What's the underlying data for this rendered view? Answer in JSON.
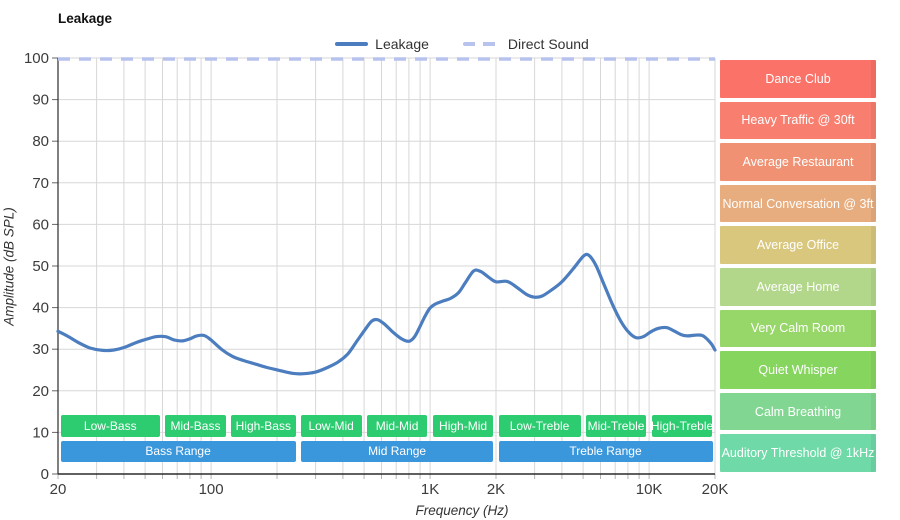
{
  "title": "Leakage",
  "legend": [
    {
      "label": "Leakage",
      "color": "#4c7dbf",
      "style": "solid"
    },
    {
      "label": "Direct Sound",
      "color": "#b7c3ed",
      "style": "dashed"
    }
  ],
  "axes": {
    "x_label": "Frequency (Hz)",
    "y_label": "Amplitude (dB SPL)",
    "x_ticks": [
      {
        "f": 20,
        "label": "20"
      },
      {
        "f": 100,
        "label": "100"
      },
      {
        "f": 1000,
        "label": "1K"
      },
      {
        "f": 2000,
        "label": "2K"
      },
      {
        "f": 10000,
        "label": "10K"
      },
      {
        "f": 20000,
        "label": "20K"
      }
    ],
    "y_ticks": [
      0,
      10,
      20,
      30,
      40,
      50,
      60,
      70,
      80,
      90,
      100
    ]
  },
  "chart_data": {
    "type": "line",
    "title": "Leakage",
    "xlabel": "Frequency (Hz)",
    "ylabel": "Amplitude (dB SPL)",
    "x_scale": "log",
    "xlim": [
      20,
      20000
    ],
    "ylim": [
      0,
      100
    ],
    "grid": true,
    "legend_position": "top-center",
    "series": [
      {
        "name": "Leakage",
        "color": "#4c7dbf",
        "style": "solid",
        "points": [
          [
            20,
            34.3
          ],
          [
            22,
            33.2
          ],
          [
            25,
            31.5
          ],
          [
            28,
            30.3
          ],
          [
            32,
            29.7
          ],
          [
            36,
            29.8
          ],
          [
            40,
            30.4
          ],
          [
            45,
            31.5
          ],
          [
            50,
            32.3
          ],
          [
            56,
            33.0
          ],
          [
            62,
            33.0
          ],
          [
            68,
            32.2
          ],
          [
            74,
            32.0
          ],
          [
            80,
            32.5
          ],
          [
            86,
            33.2
          ],
          [
            93,
            33.3
          ],
          [
            100,
            32.2
          ],
          [
            112,
            29.9
          ],
          [
            125,
            28.3
          ],
          [
            140,
            27.3
          ],
          [
            160,
            26.4
          ],
          [
            180,
            25.6
          ],
          [
            205,
            24.9
          ],
          [
            235,
            24.2
          ],
          [
            265,
            24.1
          ],
          [
            300,
            24.5
          ],
          [
            340,
            25.6
          ],
          [
            380,
            26.9
          ],
          [
            420,
            28.8
          ],
          [
            460,
            31.7
          ],
          [
            500,
            34.4
          ],
          [
            540,
            36.7
          ],
          [
            575,
            37.1
          ],
          [
            620,
            36.0
          ],
          [
            680,
            34.0
          ],
          [
            740,
            32.5
          ],
          [
            800,
            31.9
          ],
          [
            850,
            33.0
          ],
          [
            900,
            35.5
          ],
          [
            950,
            38.0
          ],
          [
            1000,
            39.9
          ],
          [
            1060,
            40.9
          ],
          [
            1150,
            41.6
          ],
          [
            1250,
            42.3
          ],
          [
            1350,
            43.6
          ],
          [
            1450,
            46.0
          ],
          [
            1580,
            48.8
          ],
          [
            1700,
            48.7
          ],
          [
            1850,
            47.3
          ],
          [
            2000,
            46.2
          ],
          [
            2250,
            46.3
          ],
          [
            2500,
            44.8
          ],
          [
            2750,
            43.2
          ],
          [
            3000,
            42.5
          ],
          [
            3250,
            42.8
          ],
          [
            3600,
            44.3
          ],
          [
            4000,
            46.2
          ],
          [
            4500,
            49.3
          ],
          [
            5000,
            52.3
          ],
          [
            5300,
            52.6
          ],
          [
            5700,
            50.3
          ],
          [
            6200,
            45.8
          ],
          [
            6800,
            40.8
          ],
          [
            7400,
            36.9
          ],
          [
            8000,
            34.3
          ],
          [
            8700,
            32.8
          ],
          [
            9400,
            33.0
          ],
          [
            10200,
            34.2
          ],
          [
            11000,
            35.0
          ],
          [
            12000,
            35.2
          ],
          [
            13000,
            34.4
          ],
          [
            14000,
            33.5
          ],
          [
            15000,
            33.2
          ],
          [
            16300,
            33.4
          ],
          [
            17500,
            33.3
          ],
          [
            18500,
            32.3
          ],
          [
            19300,
            31.2
          ],
          [
            20000,
            29.8
          ]
        ]
      },
      {
        "name": "Direct Sound",
        "color": "#b7c3ed",
        "style": "dashed",
        "points": [
          [
            20,
            100
          ],
          [
            20000,
            100
          ]
        ]
      }
    ]
  },
  "noise_levels": [
    {
      "label": "Dance Club",
      "db_range": [
        90,
        100
      ],
      "color": "#fa7268"
    },
    {
      "label": "Heavy Traffic @ 30ft",
      "db_range": [
        80,
        90
      ],
      "color": "#f87e6f"
    },
    {
      "label": "Average Restaurant",
      "db_range": [
        70,
        80
      ],
      "color": "#f09173"
    },
    {
      "label": "Normal Conversation @ 3ft",
      "db_range": [
        60,
        70
      ],
      "color": "#e7ad7f"
    },
    {
      "label": "Average Office",
      "db_range": [
        50,
        60
      ],
      "color": "#d9c77e"
    },
    {
      "label": "Average Home",
      "db_range": [
        40,
        50
      ],
      "color": "#b2d78b"
    },
    {
      "label": "Very Calm Room",
      "db_range": [
        30,
        40
      ],
      "color": "#97d669"
    },
    {
      "label": "Quiet Whisper",
      "db_range": [
        20,
        30
      ],
      "color": "#86d55f"
    },
    {
      "label": "Calm Breathing",
      "db_range": [
        10,
        20
      ],
      "color": "#81d791"
    },
    {
      "label": "Auditory Threshold @ 1kHz",
      "db_range": [
        0,
        10
      ],
      "color": "#6fd9a8"
    }
  ],
  "frequency_bands": {
    "sub_color": "#2ecc71",
    "main_color": "#3b97dc",
    "sub": [
      {
        "label": "Low-Bass",
        "range": [
          20,
          60
        ]
      },
      {
        "label": "Mid-Bass",
        "range": [
          60,
          120
        ]
      },
      {
        "label": "High-Bass",
        "range": [
          120,
          250
        ]
      },
      {
        "label": "Low-Mid",
        "range": [
          250,
          500
        ]
      },
      {
        "label": "Mid-Mid",
        "range": [
          500,
          1000
        ]
      },
      {
        "label": "High-Mid",
        "range": [
          1000,
          2000
        ]
      },
      {
        "label": "Low-Treble",
        "range": [
          2000,
          5000
        ]
      },
      {
        "label": "Mid-Treble",
        "range": [
          5000,
          10000
        ]
      },
      {
        "label": "High-Treble",
        "range": [
          10000,
          20000
        ]
      }
    ],
    "main": [
      {
        "label": "Bass Range",
        "range": [
          20,
          250
        ]
      },
      {
        "label": "Mid Range",
        "range": [
          250,
          2000
        ]
      },
      {
        "label": "Treble Range",
        "range": [
          2000,
          20000
        ]
      }
    ]
  },
  "style": {
    "grid_color": "#d7d7d7",
    "axis_color": "#2b2b2b",
    "tick_color": "#b4b4b4",
    "label_color": "#3c3c3c"
  }
}
